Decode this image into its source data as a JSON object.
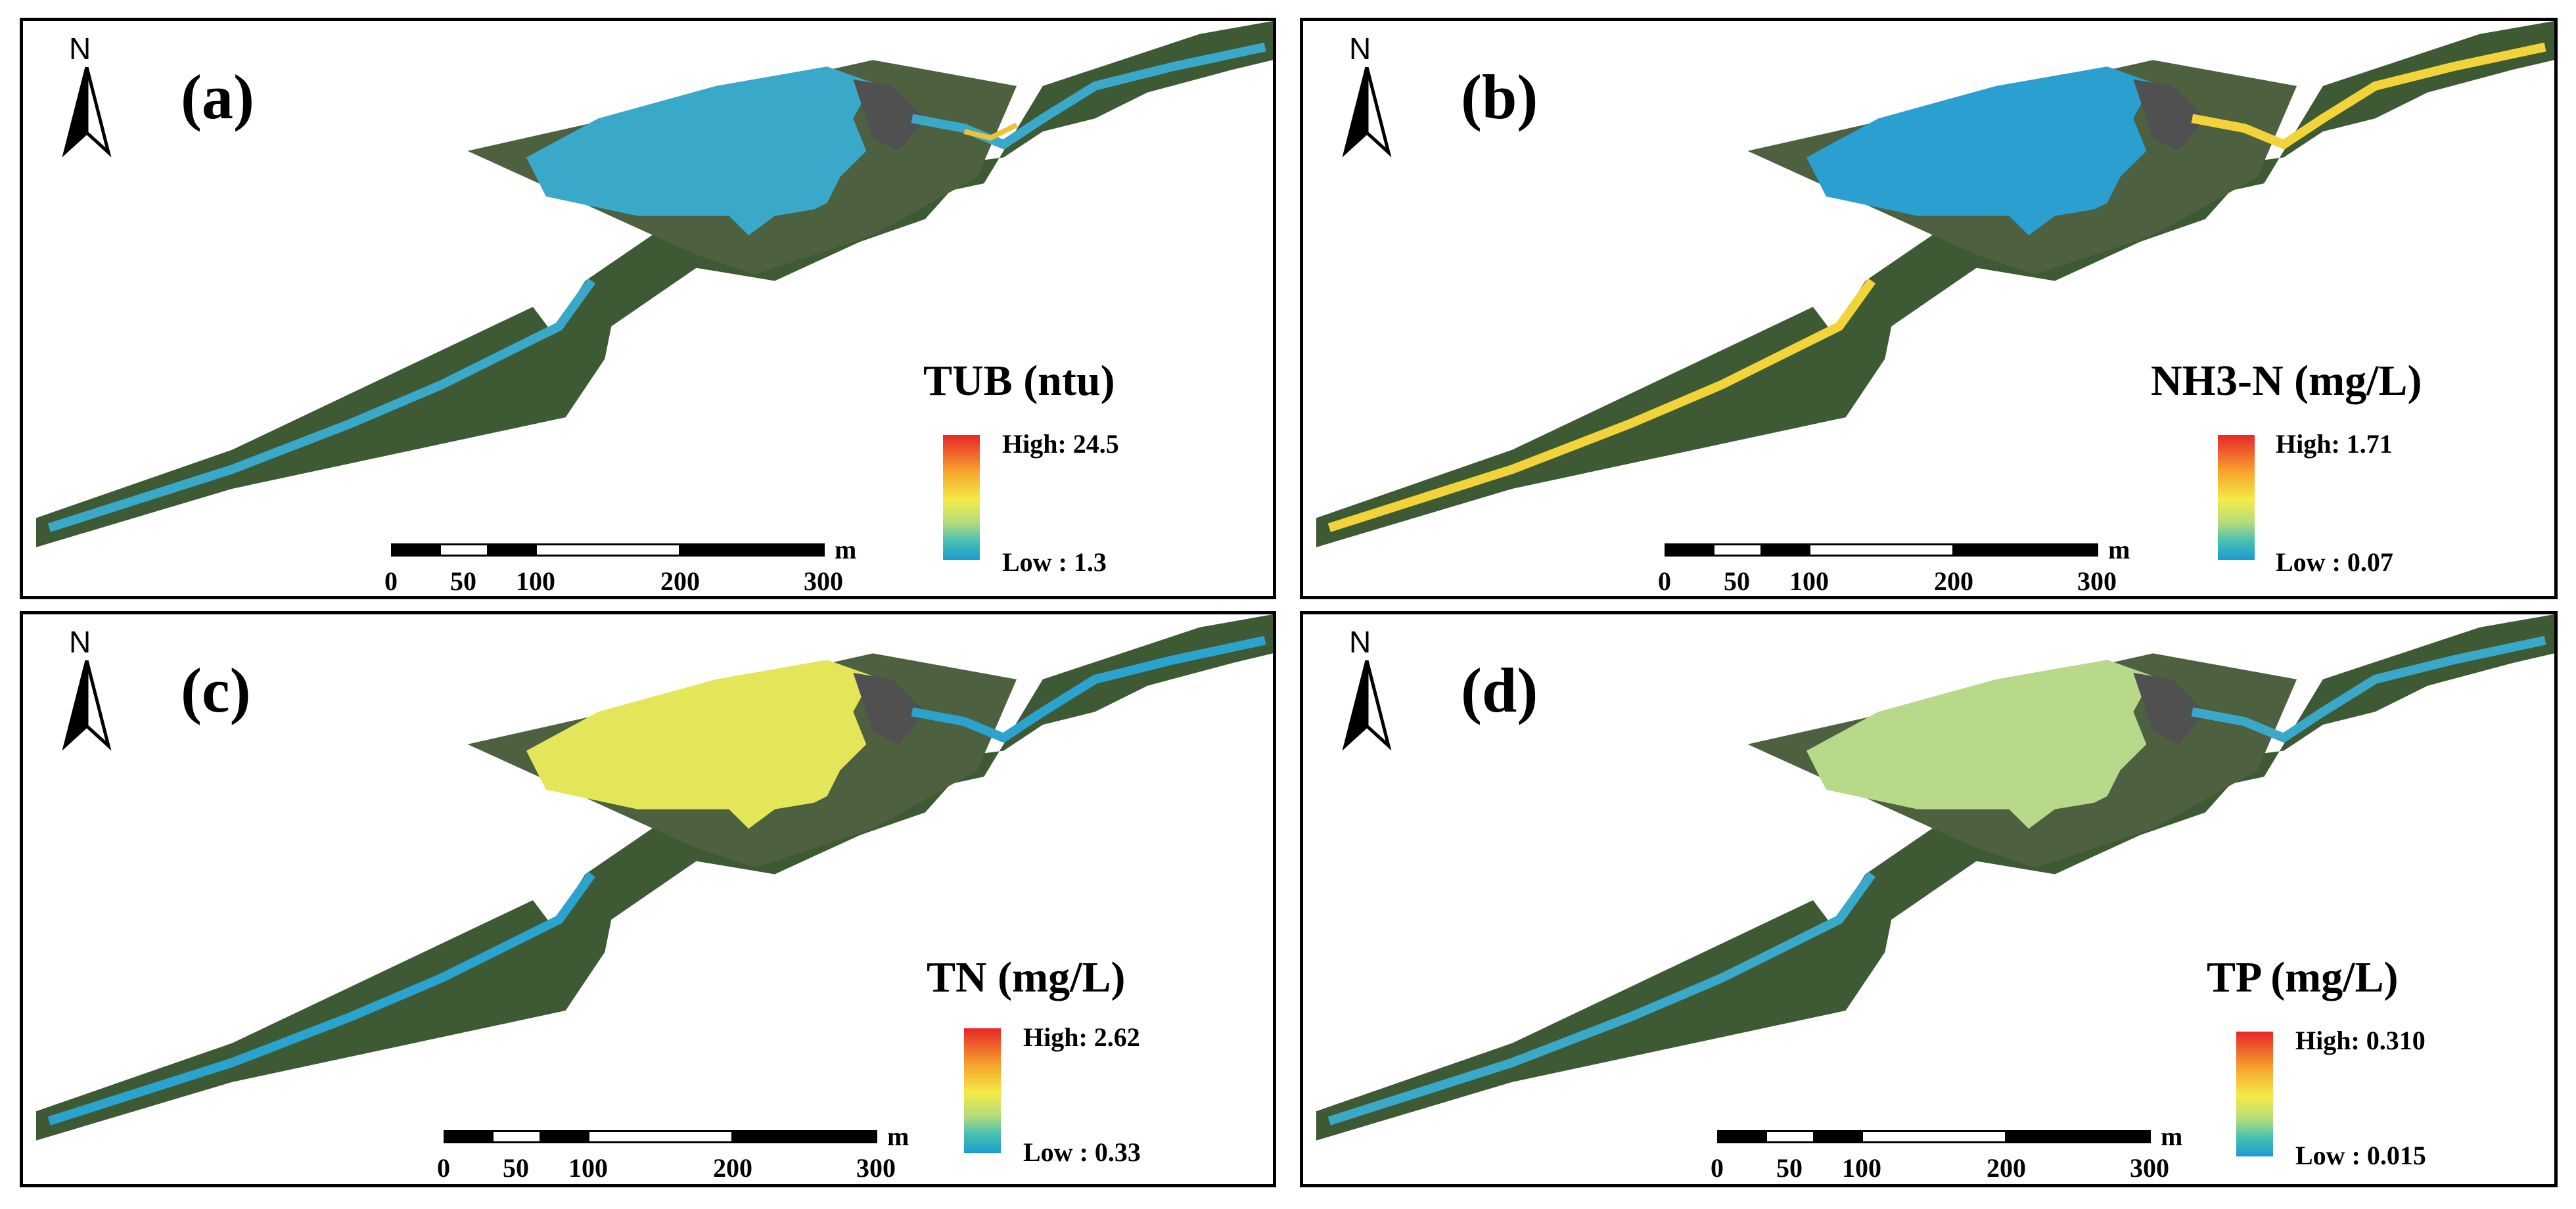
{
  "north_letter": "N",
  "panels": [
    {
      "label": "(a)",
      "title": "TUB (ntu)",
      "high": "High: 24.5",
      "low": "Low : 1.3",
      "water_color": "#3aa8c8",
      "river_accent": "#f0c23a"
    },
    {
      "label": "(b)",
      "title": "NH3-N (mg/L)",
      "high": "High: 1.71",
      "low": "Low : 0.07",
      "water_color": "#2a9fd0",
      "river_accent": "#f2d43a"
    },
    {
      "label": "(c)",
      "title": "TN (mg/L)",
      "high": "High: 2.62",
      "low": "Low : 0.33",
      "water_color": "#e4e65a",
      "river_accent": "#2aa3cf"
    },
    {
      "label": "(d)",
      "title": "TP (mg/L)",
      "high": "High: 0.310",
      "low": "Low : 0.015",
      "water_color": "#b8d88a",
      "river_accent": "#3aa8c8"
    }
  ],
  "scalebar": {
    "ticks": [
      "0",
      "50",
      "100",
      "200",
      "300"
    ],
    "unit": "m"
  },
  "colors": {
    "ramp_high": "#e8262a",
    "ramp_mid": "#f3eb4a",
    "ramp_low": "#1a9bd0",
    "terrain": "#3d5a34"
  }
}
